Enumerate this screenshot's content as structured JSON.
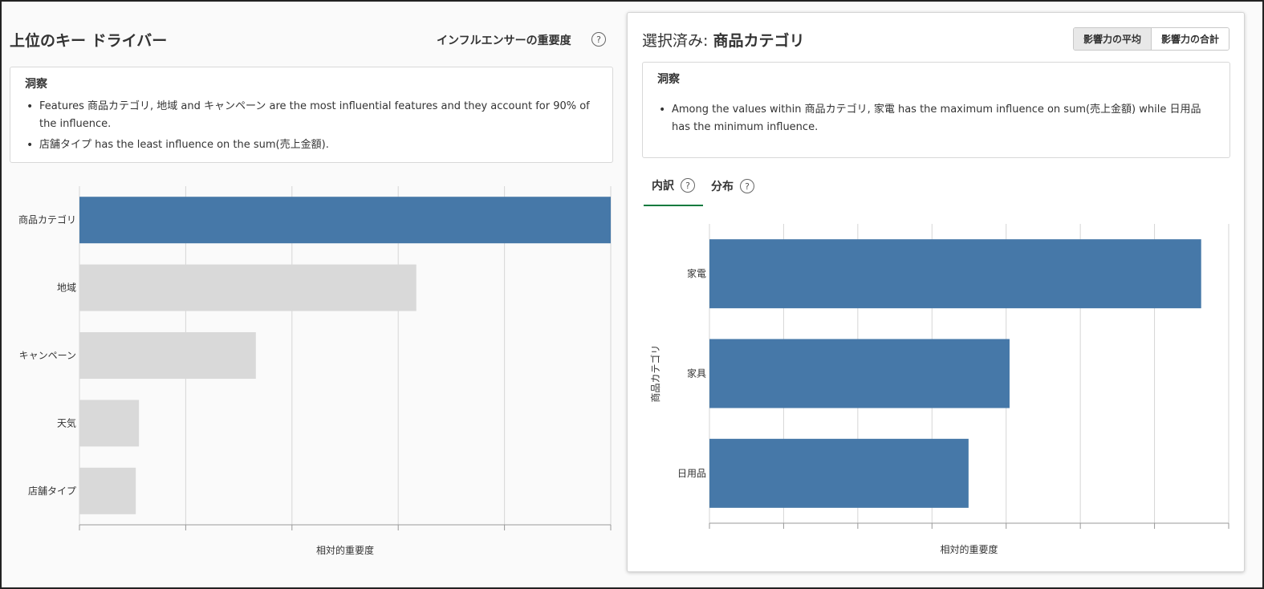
{
  "left": {
    "title": "上位のキー ドライバー",
    "influencer_label": "インフルエンサーの重要度",
    "help_glyph": "?",
    "insight_title": "洞察",
    "insights": [
      "Features 商品カテゴリ, 地域 and キャンペーン are the most influential features and they account for 90% of the influence.",
      "店舗タイプ has the least influence on the sum(売上金額)."
    ]
  },
  "right": {
    "selected_prefix": "選択済み: ",
    "selected_value": "商品カテゴリ",
    "toggle": [
      "影響力の平均",
      "影響力の合計"
    ],
    "insight_title": "洞察",
    "insights": [
      "Among the values within 商品カテゴリ, 家電 has the maximum influence on sum(売上金額) while 日用品 has the minimum influence."
    ],
    "tabs": [
      "内訳",
      "分布"
    ],
    "help_glyph": "?"
  },
  "colors": {
    "accent": "#4678a8",
    "muted": "#d9d9d9",
    "tab_underline": "#0e7a3e"
  },
  "chart_data": [
    {
      "type": "bar",
      "orientation": "horizontal",
      "categories": [
        "商品カテゴリ",
        "地域",
        "キャンペーン",
        "天気",
        "店舗タイプ"
      ],
      "values": [
        1.0,
        0.634,
        0.332,
        0.112,
        0.106
      ],
      "highlighted": "商品カテゴリ",
      "xlabel": "相対的重要度",
      "ylabel": "",
      "xlim": [
        0,
        1.0
      ],
      "grid": true
    },
    {
      "type": "bar",
      "orientation": "horizontal",
      "categories": [
        "家電",
        "家具",
        "日用品"
      ],
      "values": [
        0.947,
        0.578,
        0.499
      ],
      "xlabel": "相対的重要度",
      "ylabel": "商品カテゴリ",
      "xlim": [
        0,
        1.0
      ],
      "grid": true
    }
  ]
}
